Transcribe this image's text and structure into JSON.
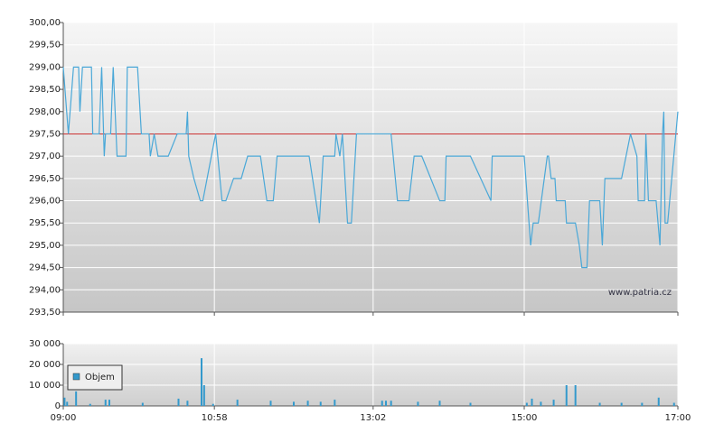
{
  "chart_data": [
    {
      "type": "line",
      "watermark": "www.patria.cz",
      "xlim": [
        0,
        480
      ],
      "ylim": [
        293.5,
        300
      ],
      "yticks": [
        {
          "value": 293.5,
          "label": "293,50"
        },
        {
          "value": 294,
          "label": "294,00"
        },
        {
          "value": 294.5,
          "label": "294,50"
        },
        {
          "value": 295,
          "label": "295,00"
        },
        {
          "value": 295.5,
          "label": "295,50"
        },
        {
          "value": 296,
          "label": "296,00"
        },
        {
          "value": 296.5,
          "label": "296,50"
        },
        {
          "value": 297,
          "label": "297,00"
        },
        {
          "value": 297.5,
          "label": "297,50"
        },
        {
          "value": 298,
          "label": "298,00"
        },
        {
          "value": 298.5,
          "label": "298,50"
        },
        {
          "value": 299,
          "label": "299,00"
        },
        {
          "value": 299.5,
          "label": "299,50"
        },
        {
          "value": 300,
          "label": "300,00"
        }
      ],
      "reference_line": 297.5,
      "reference_color": "#cc3333",
      "color": "#4aa8d8",
      "x": [
        0,
        4,
        8,
        12,
        13,
        15,
        22,
        23,
        28,
        30,
        32,
        33,
        37,
        39,
        42,
        49,
        50,
        58,
        61,
        67,
        68,
        71,
        74,
        82,
        89,
        96,
        97,
        98,
        102,
        107,
        109,
        119,
        124,
        127,
        133,
        139,
        144,
        154,
        159,
        164,
        167,
        192,
        200,
        203,
        212,
        213,
        216,
        218,
        222,
        225,
        229,
        256,
        261,
        270,
        274,
        280,
        294,
        298,
        299,
        318,
        334,
        335,
        360,
        365,
        367,
        371,
        378,
        379,
        381,
        384,
        385,
        392,
        393,
        400,
        403,
        405,
        409,
        411,
        419,
        421,
        423,
        436,
        443,
        448,
        449,
        454,
        455,
        457,
        463,
        466,
        468,
        469,
        470,
        472,
        480
      ],
      "values": [
        299,
        297.5,
        299,
        299,
        298,
        299,
        299,
        297.5,
        297.5,
        299,
        297,
        297.5,
        297.5,
        299,
        297,
        297,
        299,
        299,
        297.5,
        297.5,
        297,
        297.5,
        297,
        297,
        297.5,
        297.5,
        298,
        297,
        296.5,
        296,
        296,
        297.5,
        296,
        296,
        296.5,
        296.5,
        297,
        297,
        296,
        296,
        297,
        297,
        295.5,
        297,
        297,
        297.5,
        297,
        297.5,
        295.5,
        295.5,
        297.5,
        297.5,
        296,
        296,
        297,
        297,
        296,
        296,
        297,
        297,
        296,
        297,
        297,
        295,
        295.5,
        295.5,
        297,
        297,
        296.5,
        296.5,
        296,
        296,
        295.5,
        295.5,
        295,
        294.5,
        294.5,
        296,
        296,
        295,
        296.5,
        296.5,
        297.5,
        297,
        296,
        296,
        297.5,
        296,
        296,
        295,
        297.5,
        298,
        295.5,
        295.5,
        298
      ]
    },
    {
      "type": "bar",
      "xlim": [
        0,
        480
      ],
      "xticks": [
        {
          "value": 0,
          "label": "09:00"
        },
        {
          "value": 118,
          "label": "10:58"
        },
        {
          "value": 242,
          "label": "13:02"
        },
        {
          "value": 360,
          "label": "15:00"
        },
        {
          "value": 480,
          "label": "17:00"
        }
      ],
      "ylim": [
        0,
        30000
      ],
      "yticks": [
        0,
        {
          "value": 10000,
          "label": "10 000"
        },
        {
          "value": 20000,
          "label": "20 000"
        },
        {
          "value": 30000,
          "label": "30 000"
        }
      ],
      "series": [
        {
          "name": "Objem",
          "color": "#3399cc",
          "x": [
            1,
            3,
            10,
            21,
            33,
            36,
            62,
            90,
            97,
            108,
            110,
            117,
            136,
            162,
            180,
            191,
            201,
            212,
            249,
            252,
            256,
            277,
            294,
            318,
            362,
            366,
            373,
            383,
            393,
            400,
            419,
            436,
            452,
            465,
            477
          ],
          "values": [
            4000,
            2000,
            7000,
            1000,
            3000,
            3000,
            1500,
            3500,
            2500,
            23000,
            10000,
            1000,
            3000,
            2500,
            2000,
            2500,
            2000,
            3000,
            2500,
            2500,
            2500,
            2000,
            2500,
            1500,
            1500,
            3500,
            2000,
            3000,
            10000,
            10000,
            1500,
            1500,
            1500,
            4000,
            1500
          ]
        }
      ]
    }
  ]
}
